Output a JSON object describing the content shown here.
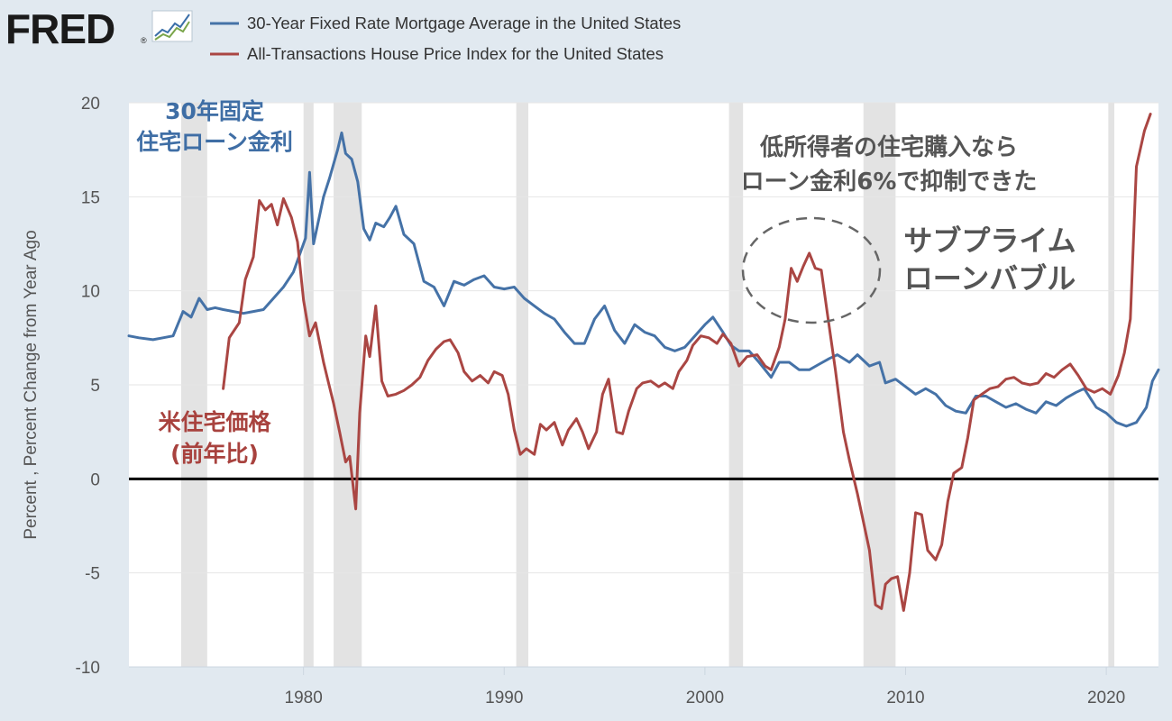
{
  "brand": {
    "logo_text": "FRED",
    "trademark": "®"
  },
  "legend": [
    {
      "label": "30-Year Fixed Rate Mortgage Average in the United States",
      "color": "#4572a7"
    },
    {
      "label": "All-Transactions House Price Index for the United States",
      "color": "#aa4643"
    }
  ],
  "annotations": {
    "mortgage_label_line1": "30年固定",
    "mortgage_label_line2": "住宅ローン金利",
    "hpi_label_line1": "米住宅価格",
    "hpi_label_line2": "(前年比)",
    "note_line1": "低所得者の住宅購入なら",
    "note_line2": "ローン金利6%で抑制できた",
    "bubble_line1": "サブプライム",
    "bubble_line2": "ローンバブル"
  },
  "chart_data": {
    "type": "line",
    "title": "",
    "xlabel": "",
    "ylabel": "Percent , Percent Change from Year Ago",
    "xlim": [
      1971.3,
      2022.6
    ],
    "ylim": [
      -10,
      20
    ],
    "y_ticks": [
      -10,
      -5,
      0,
      5,
      10,
      15,
      20
    ],
    "x_ticks": [
      1980,
      1990,
      2000,
      2010,
      2020
    ],
    "grid": true,
    "legend_position": "top-left",
    "zero_line": true,
    "recessions": [
      [
        1973.9,
        1975.2
      ],
      [
        1980.0,
        1980.5
      ],
      [
        1981.5,
        1982.9
      ],
      [
        1990.6,
        1991.2
      ],
      [
        2001.2,
        2001.9
      ],
      [
        2007.9,
        2009.5
      ],
      [
        2020.1,
        2020.4
      ]
    ],
    "series": [
      {
        "name": "30-Year Fixed Rate Mortgage Average in the United States",
        "color": "#4572a7",
        "points": [
          [
            1971.3,
            7.6
          ],
          [
            1971.8,
            7.5
          ],
          [
            1972.5,
            7.4
          ],
          [
            1973.0,
            7.5
          ],
          [
            1973.5,
            7.6
          ],
          [
            1974.0,
            8.9
          ],
          [
            1974.4,
            8.6
          ],
          [
            1974.8,
            9.6
          ],
          [
            1975.2,
            9.0
          ],
          [
            1975.6,
            9.1
          ],
          [
            1976.0,
            9.0
          ],
          [
            1976.5,
            8.9
          ],
          [
            1977.0,
            8.8
          ],
          [
            1977.5,
            8.9
          ],
          [
            1978.0,
            9.0
          ],
          [
            1978.5,
            9.6
          ],
          [
            1979.0,
            10.2
          ],
          [
            1979.5,
            11.0
          ],
          [
            1979.9,
            12.2
          ],
          [
            1980.1,
            12.8
          ],
          [
            1980.3,
            16.3
          ],
          [
            1980.5,
            12.5
          ],
          [
            1980.8,
            14.0
          ],
          [
            1981.0,
            15.0
          ],
          [
            1981.3,
            16.0
          ],
          [
            1981.7,
            17.5
          ],
          [
            1981.9,
            18.4
          ],
          [
            1982.1,
            17.3
          ],
          [
            1982.4,
            17.0
          ],
          [
            1982.7,
            15.8
          ],
          [
            1983.0,
            13.3
          ],
          [
            1983.3,
            12.7
          ],
          [
            1983.6,
            13.6
          ],
          [
            1984.0,
            13.4
          ],
          [
            1984.3,
            13.9
          ],
          [
            1984.6,
            14.5
          ],
          [
            1985.0,
            13.0
          ],
          [
            1985.5,
            12.5
          ],
          [
            1986.0,
            10.5
          ],
          [
            1986.5,
            10.2
          ],
          [
            1987.0,
            9.2
          ],
          [
            1987.5,
            10.5
          ],
          [
            1988.0,
            10.3
          ],
          [
            1988.5,
            10.6
          ],
          [
            1989.0,
            10.8
          ],
          [
            1989.5,
            10.2
          ],
          [
            1990.0,
            10.1
          ],
          [
            1990.5,
            10.2
          ],
          [
            1991.0,
            9.6
          ],
          [
            1991.5,
            9.2
          ],
          [
            1992.0,
            8.8
          ],
          [
            1992.5,
            8.5
          ],
          [
            1993.0,
            7.8
          ],
          [
            1993.5,
            7.2
          ],
          [
            1994.0,
            7.2
          ],
          [
            1994.5,
            8.5
          ],
          [
            1995.0,
            9.2
          ],
          [
            1995.5,
            7.9
          ],
          [
            1996.0,
            7.2
          ],
          [
            1996.5,
            8.2
          ],
          [
            1997.0,
            7.8
          ],
          [
            1997.5,
            7.6
          ],
          [
            1998.0,
            7.0
          ],
          [
            1998.5,
            6.8
          ],
          [
            1999.0,
            7.0
          ],
          [
            1999.5,
            7.6
          ],
          [
            2000.0,
            8.2
          ],
          [
            2000.4,
            8.6
          ],
          [
            2000.9,
            7.8
          ],
          [
            2001.3,
            7.1
          ],
          [
            2001.7,
            6.8
          ],
          [
            2002.2,
            6.8
          ],
          [
            2002.7,
            6.2
          ],
          [
            2003.3,
            5.4
          ],
          [
            2003.7,
            6.2
          ],
          [
            2004.2,
            6.2
          ],
          [
            2004.7,
            5.8
          ],
          [
            2005.2,
            5.8
          ],
          [
            2005.7,
            6.1
          ],
          [
            2006.2,
            6.4
          ],
          [
            2006.6,
            6.6
          ],
          [
            2007.2,
            6.2
          ],
          [
            2007.6,
            6.6
          ],
          [
            2008.2,
            6.0
          ],
          [
            2008.7,
            6.2
          ],
          [
            2009.0,
            5.1
          ],
          [
            2009.5,
            5.3
          ],
          [
            2010.0,
            4.9
          ],
          [
            2010.5,
            4.5
          ],
          [
            2011.0,
            4.8
          ],
          [
            2011.5,
            4.5
          ],
          [
            2012.0,
            3.9
          ],
          [
            2012.5,
            3.6
          ],
          [
            2013.0,
            3.5
          ],
          [
            2013.5,
            4.4
          ],
          [
            2014.0,
            4.4
          ],
          [
            2014.5,
            4.1
          ],
          [
            2015.0,
            3.8
          ],
          [
            2015.5,
            4.0
          ],
          [
            2016.0,
            3.7
          ],
          [
            2016.5,
            3.5
          ],
          [
            2017.0,
            4.1
          ],
          [
            2017.5,
            3.9
          ],
          [
            2018.0,
            4.3
          ],
          [
            2018.5,
            4.6
          ],
          [
            2018.9,
            4.8
          ],
          [
            2019.5,
            3.8
          ],
          [
            2020.0,
            3.5
          ],
          [
            2020.5,
            3.0
          ],
          [
            2021.0,
            2.8
          ],
          [
            2021.5,
            3.0
          ],
          [
            2022.0,
            3.8
          ],
          [
            2022.3,
            5.2
          ],
          [
            2022.6,
            5.8
          ]
        ]
      },
      {
        "name": "All-Transactions House Price Index for the United States",
        "color": "#aa4643",
        "points": [
          [
            1976.0,
            4.8
          ],
          [
            1976.3,
            7.5
          ],
          [
            1976.8,
            8.3
          ],
          [
            1977.1,
            10.6
          ],
          [
            1977.5,
            11.8
          ],
          [
            1977.8,
            14.8
          ],
          [
            1978.1,
            14.3
          ],
          [
            1978.4,
            14.6
          ],
          [
            1978.7,
            13.5
          ],
          [
            1979.0,
            14.9
          ],
          [
            1979.4,
            13.9
          ],
          [
            1979.7,
            12.6
          ],
          [
            1980.0,
            9.5
          ],
          [
            1980.3,
            7.6
          ],
          [
            1980.6,
            8.3
          ],
          [
            1981.0,
            6.2
          ],
          [
            1981.2,
            5.3
          ],
          [
            1981.5,
            4.0
          ],
          [
            1981.8,
            2.5
          ],
          [
            1982.1,
            0.9
          ],
          [
            1982.3,
            1.2
          ],
          [
            1982.6,
            -1.6
          ],
          [
            1982.8,
            3.5
          ],
          [
            1983.1,
            7.6
          ],
          [
            1983.3,
            6.5
          ],
          [
            1983.6,
            9.2
          ],
          [
            1983.9,
            5.2
          ],
          [
            1984.2,
            4.4
          ],
          [
            1984.6,
            4.5
          ],
          [
            1985.0,
            4.7
          ],
          [
            1985.4,
            5.0
          ],
          [
            1985.8,
            5.4
          ],
          [
            1986.2,
            6.3
          ],
          [
            1986.6,
            6.9
          ],
          [
            1987.0,
            7.3
          ],
          [
            1987.3,
            7.4
          ],
          [
            1987.7,
            6.7
          ],
          [
            1988.0,
            5.7
          ],
          [
            1988.4,
            5.2
          ],
          [
            1988.8,
            5.5
          ],
          [
            1989.2,
            5.1
          ],
          [
            1989.5,
            5.7
          ],
          [
            1989.9,
            5.5
          ],
          [
            1990.2,
            4.5
          ],
          [
            1990.5,
            2.6
          ],
          [
            1990.8,
            1.3
          ],
          [
            1991.1,
            1.6
          ],
          [
            1991.5,
            1.3
          ],
          [
            1991.8,
            2.9
          ],
          [
            1992.1,
            2.6
          ],
          [
            1992.5,
            3.0
          ],
          [
            1992.9,
            1.8
          ],
          [
            1993.2,
            2.6
          ],
          [
            1993.6,
            3.2
          ],
          [
            1993.9,
            2.5
          ],
          [
            1994.2,
            1.6
          ],
          [
            1994.6,
            2.5
          ],
          [
            1994.9,
            4.5
          ],
          [
            1995.2,
            5.3
          ],
          [
            1995.6,
            2.5
          ],
          [
            1995.9,
            2.4
          ],
          [
            1996.2,
            3.6
          ],
          [
            1996.6,
            4.8
          ],
          [
            1996.9,
            5.1
          ],
          [
            1997.3,
            5.2
          ],
          [
            1997.7,
            4.9
          ],
          [
            1998.0,
            5.1
          ],
          [
            1998.4,
            4.8
          ],
          [
            1998.7,
            5.7
          ],
          [
            1999.1,
            6.3
          ],
          [
            1999.4,
            7.1
          ],
          [
            1999.8,
            7.6
          ],
          [
            2000.2,
            7.5
          ],
          [
            2000.6,
            7.2
          ],
          [
            2000.9,
            7.7
          ],
          [
            2001.3,
            7.2
          ],
          [
            2001.7,
            6.0
          ],
          [
            2002.1,
            6.5
          ],
          [
            2002.6,
            6.6
          ],
          [
            2003.0,
            6.0
          ],
          [
            2003.3,
            5.8
          ],
          [
            2003.7,
            7.0
          ],
          [
            2004.0,
            8.5
          ],
          [
            2004.3,
            11.2
          ],
          [
            2004.6,
            10.5
          ],
          [
            2004.9,
            11.3
          ],
          [
            2005.2,
            12.0
          ],
          [
            2005.5,
            11.2
          ],
          [
            2005.8,
            11.1
          ],
          [
            2006.1,
            8.8
          ],
          [
            2006.5,
            5.8
          ],
          [
            2006.9,
            2.5
          ],
          [
            2007.2,
            1.0
          ],
          [
            2007.6,
            -0.8
          ],
          [
            2007.9,
            -2.3
          ],
          [
            2008.2,
            -3.8
          ],
          [
            2008.5,
            -6.7
          ],
          [
            2008.8,
            -6.9
          ],
          [
            2009.0,
            -5.6
          ],
          [
            2009.3,
            -5.3
          ],
          [
            2009.6,
            -5.2
          ],
          [
            2009.9,
            -7.0
          ],
          [
            2010.2,
            -5.0
          ],
          [
            2010.5,
            -1.8
          ],
          [
            2010.8,
            -1.9
          ],
          [
            2011.1,
            -3.8
          ],
          [
            2011.5,
            -4.3
          ],
          [
            2011.8,
            -3.5
          ],
          [
            2012.1,
            -1.2
          ],
          [
            2012.4,
            0.3
          ],
          [
            2012.8,
            0.6
          ],
          [
            2013.1,
            2.2
          ],
          [
            2013.4,
            4.2
          ],
          [
            2013.8,
            4.5
          ],
          [
            2014.2,
            4.8
          ],
          [
            2014.6,
            4.9
          ],
          [
            2015.0,
            5.3
          ],
          [
            2015.4,
            5.4
          ],
          [
            2015.8,
            5.1
          ],
          [
            2016.2,
            5.0
          ],
          [
            2016.6,
            5.1
          ],
          [
            2017.0,
            5.6
          ],
          [
            2017.4,
            5.4
          ],
          [
            2017.8,
            5.8
          ],
          [
            2018.2,
            6.1
          ],
          [
            2018.6,
            5.5
          ],
          [
            2019.0,
            4.8
          ],
          [
            2019.4,
            4.6
          ],
          [
            2019.8,
            4.8
          ],
          [
            2020.2,
            4.5
          ],
          [
            2020.6,
            5.5
          ],
          [
            2020.9,
            6.7
          ],
          [
            2021.2,
            8.5
          ],
          [
            2021.5,
            16.6
          ],
          [
            2021.9,
            18.5
          ],
          [
            2022.2,
            19.4
          ]
        ]
      }
    ]
  }
}
